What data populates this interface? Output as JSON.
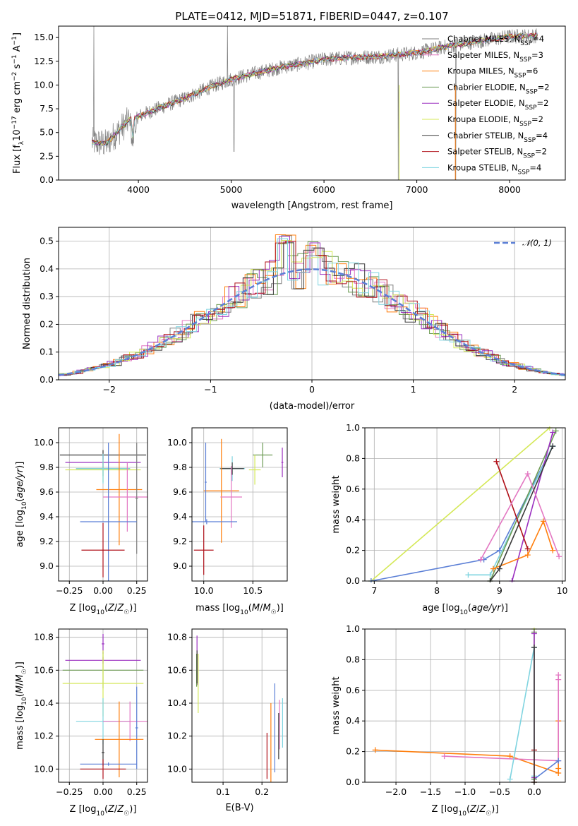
{
  "figure": {
    "title": "PLATE=0412, MJD=51871, FIBERID=0447, z=0.107"
  },
  "model_colors": [
    "#7f7f7f",
    "#e377c2",
    "#ff7f0e",
    "#6c9b53",
    "#9b30c0",
    "#d4e857",
    "#3a3a3a",
    "#b0111a",
    "#7fd4e0"
  ],
  "chart_data": [
    {
      "type": "line",
      "panel": "spectrum",
      "title": "PLATE=0412, MJD=51871, FIBERID=0447, z=0.107",
      "xlabel": "wavelength [Angstrom, rest frame]",
      "ylabel": "Flux [f_λ 10^-17 erg cm^-2 s^-1 A^-1]",
      "xlim": [
        3140,
        8600
      ],
      "ylim": [
        0,
        16.2
      ],
      "xticks": [
        4000,
        5000,
        6000,
        7000,
        8000
      ],
      "yticks": [
        0.0,
        2.5,
        5.0,
        7.5,
        10.0,
        12.5,
        15.0
      ],
      "ytick_labels": [
        "0.0",
        "2.5",
        "5.0",
        "7.5",
        "10.0",
        "12.5",
        "15.0"
      ],
      "grid": false,
      "legend_position": "top-right",
      "legend": [
        {
          "label": "Chabrier MILES, N",
          "sub": "SSP",
          "suffix": "=4",
          "color": "#7f7f7f"
        },
        {
          "label": "Salpeter MILES, N",
          "sub": "SSP",
          "suffix": "=3",
          "color": "#e377c2"
        },
        {
          "label": "Kroupa MILES, N",
          "sub": "SSP",
          "suffix": "=6",
          "color": "#ff7f0e"
        },
        {
          "label": "Chabrier ELODIE, N",
          "sub": "SSP",
          "suffix": "=2",
          "color": "#6c9b53"
        },
        {
          "label": "Salpeter ELODIE, N",
          "sub": "SSP",
          "suffix": "=2",
          "color": "#9b30c0"
        },
        {
          "label": "Kroupa ELODIE, N",
          "sub": "SSP",
          "suffix": "=2",
          "color": "#d4e857"
        },
        {
          "label": "Chabrier STELIB, N",
          "sub": "SSP",
          "suffix": "=4",
          "color": "#3a3a3a"
        },
        {
          "label": "Salpeter STELIB, N",
          "sub": "SSP",
          "suffix": "=2",
          "color": "#b0111a"
        },
        {
          "label": "Kroupa STELIB, N",
          "sub": "SSP",
          "suffix": "=4",
          "color": "#7fd4e0"
        }
      ],
      "continuum": {
        "x": [
          3500,
          3650,
          3900,
          4000,
          4200,
          4500,
          4800,
          5000,
          5200,
          5500,
          5800,
          6000,
          6300,
          6600,
          7000,
          7400,
          7800,
          8000,
          8300
        ],
        "y": [
          4.0,
          3.8,
          6.3,
          6.7,
          7.5,
          8.6,
          9.9,
          10.6,
          11.1,
          11.8,
          12.3,
          12.7,
          12.9,
          13.0,
          13.4,
          14.2,
          14.8,
          15.1,
          15.2
        ]
      }
    },
    {
      "type": "line",
      "panel": "residuals",
      "xlabel": "(data-model)/error",
      "ylabel": "Normed distribution",
      "xlim": [
        -2.5,
        2.5
      ],
      "ylim": [
        0,
        0.55
      ],
      "xticks": [
        -2,
        -1,
        0,
        1,
        2
      ],
      "xtick_labels": [
        "−2",
        "−1",
        "0",
        "1",
        "2"
      ],
      "yticks": [
        0.0,
        0.1,
        0.2,
        0.3,
        0.4,
        0.5
      ],
      "ytick_labels": [
        "0.0",
        "0.1",
        "0.2",
        "0.3",
        "0.4",
        "0.5"
      ],
      "grid": true,
      "legend": [
        {
          "label": "𝒩(0, 1)",
          "color": "#5b7fd6",
          "style": "dashed"
        }
      ],
      "reference": {
        "name": "𝒩(0, 1)",
        "mean": 0,
        "sigma": 1
      }
    },
    {
      "type": "scatter",
      "panel": "age-vs-Z",
      "xlabel": "Z [log10(Z/Z☉)]",
      "ylabel": "age [log10(age/yr)]",
      "xlim": [
        -0.33,
        0.33
      ],
      "ylim": [
        8.88,
        10.12
      ],
      "xticks": [
        -0.25,
        0.0,
        0.25
      ],
      "xtick_labels": [
        "−0.25",
        "0.00",
        "0.25"
      ],
      "yticks": [
        9.0,
        9.2,
        9.4,
        9.6,
        9.8,
        10.0
      ],
      "ytick_labels": [
        "9.0",
        "9.2",
        "9.4",
        "9.6",
        "9.8",
        "10.0"
      ],
      "grid": true,
      "points": [
        {
          "x": 0.0,
          "xerr": 0.32,
          "y": 9.9,
          "yerr": 0.04,
          "color": "#3a3a3a"
        },
        {
          "x": 0.0,
          "xerr": 0.28,
          "y": 9.84,
          "yerr": 0.05,
          "color": "#9b30c0"
        },
        {
          "x": 0.0,
          "xerr": 0.2,
          "y": 9.79,
          "yerr": 0.06,
          "color": "#6c9b53"
        },
        {
          "x": 0.0,
          "xerr": 0.28,
          "y": 9.78,
          "yerr": 0.1,
          "color": "#d4e857"
        },
        {
          "x": 0.0,
          "xerr": 0.2,
          "y": 9.79,
          "yerr": 0.12,
          "color": "#7fd4e0"
        },
        {
          "x": 0.12,
          "xerr": 0.17,
          "y": 9.62,
          "yerr": 0.45,
          "color": "#ff7f0e"
        },
        {
          "x": 0.18,
          "xerr": 0.18,
          "y": 9.56,
          "yerr": 0.28,
          "color": "#e377c2"
        },
        {
          "x": 0.25,
          "xerr": 0.01,
          "y": 9.55,
          "yerr": 0.45,
          "color": "#7f7f7f"
        },
        {
          "x": 0.04,
          "xerr": 0.21,
          "y": 9.36,
          "yerr": 0.64,
          "color": "#5b7fd6"
        },
        {
          "x": 0.0,
          "xerr": 0.16,
          "y": 9.13,
          "yerr": 0.22,
          "color": "#b0111a"
        }
      ]
    },
    {
      "type": "scatter",
      "panel": "age-vs-mass",
      "xlabel": "mass [log10(M/M☉)]",
      "xlim": [
        9.88,
        10.85
      ],
      "ylim": [
        8.88,
        10.12
      ],
      "xticks": [
        10.0,
        10.5
      ],
      "xtick_labels": [
        "10.0",
        "10.5"
      ],
      "yticks": [
        9.0,
        9.2,
        9.4,
        9.6,
        9.8,
        10.0
      ],
      "ytick_labels": [
        "9.0",
        "9.2",
        "9.4",
        "9.6",
        "9.8",
        "10.0"
      ],
      "grid": true,
      "points": [
        {
          "x": 10.8,
          "xerr": 0.01,
          "y": 9.84,
          "yerr": 0.12,
          "color": "#9b30c0"
        },
        {
          "x": 10.6,
          "xerr": 0.1,
          "y": 9.9,
          "yerr": 0.1,
          "color": "#6c9b53"
        },
        {
          "x": 10.52,
          "xerr": 0.06,
          "y": 9.78,
          "yerr": 0.12,
          "color": "#d4e857"
        },
        {
          "x": 10.29,
          "xerr": 0.13,
          "y": 9.79,
          "yerr": 0.1,
          "color": "#7fd4e0"
        },
        {
          "x": 10.29,
          "xerr": 0.12,
          "y": 9.79,
          "yerr": 0.05,
          "color": "#3a3a3a"
        },
        {
          "x": 10.18,
          "xerr": 0.18,
          "y": 9.61,
          "yerr": 0.42,
          "color": "#ff7f0e"
        },
        {
          "x": 10.28,
          "xerr": 0.11,
          "y": 9.56,
          "yerr": 0.25,
          "color": "#e377c2"
        },
        {
          "x": 10.02,
          "xerr": 0.01,
          "y": 9.68,
          "yerr": 0.32,
          "color": "#5b7fd6"
        },
        {
          "x": 10.03,
          "xerr": 0.31,
          "y": 9.36,
          "yerr": 0.02,
          "color": "#5b7fd6"
        },
        {
          "x": 10.0,
          "xerr": 0.1,
          "y": 9.13,
          "yerr": 0.2,
          "color": "#b0111a"
        }
      ]
    },
    {
      "type": "line",
      "panel": "mass-weight-vs-age",
      "xlabel": "age [log10(age/yr)]",
      "ylabel": "mass weight",
      "xlim": [
        6.85,
        10.05
      ],
      "ylim": [
        0,
        1
      ],
      "xticks": [
        7,
        8,
        9,
        10
      ],
      "yticks": [
        0.0,
        0.2,
        0.4,
        0.6,
        0.8,
        1.0
      ],
      "ytick_labels": [
        "0.0",
        "0.2",
        "0.4",
        "0.6",
        "0.8",
        "1.0"
      ],
      "grid": true,
      "series": [
        {
          "color": "#d4e857",
          "x": [
            6.95,
            9.8
          ],
          "y": [
            0.0,
            1.0
          ]
        },
        {
          "color": "#5b7fd6",
          "x": [
            6.95,
            8.75,
            9.0,
            9.85
          ],
          "y": [
            0.0,
            0.14,
            0.2,
            0.88
          ]
        },
        {
          "color": "#7fd4e0",
          "x": [
            8.5,
            8.85,
            9.85
          ],
          "y": [
            0.04,
            0.04,
            0.88
          ]
        },
        {
          "color": "#6c9b53",
          "x": [
            8.85,
            9.9
          ],
          "y": [
            0.0,
            0.98
          ]
        },
        {
          "color": "#9b30c0",
          "x": [
            9.2,
            9.85
          ],
          "y": [
            0.0,
            0.97
          ]
        },
        {
          "color": "#b0111a",
          "x": [
            8.95,
            9.45
          ],
          "y": [
            0.78,
            0.21
          ]
        },
        {
          "color": "#e377c2",
          "x": [
            8.7,
            9.45,
            9.95
          ],
          "y": [
            0.14,
            0.7,
            0.16
          ]
        },
        {
          "color": "#ff7f0e",
          "x": [
            8.9,
            9.45,
            9.7,
            9.85
          ],
          "y": [
            0.08,
            0.17,
            0.39,
            0.2
          ]
        },
        {
          "color": "#3a3a3a",
          "x": [
            8.85,
            9.0,
            9.85
          ],
          "y": [
            0.0,
            0.08,
            0.88
          ]
        }
      ]
    },
    {
      "type": "scatter",
      "panel": "mass-vs-Z",
      "xlabel": "Z [log10(Z/Z☉)]",
      "ylabel": "mass [log10(M/M☉)]",
      "xlim": [
        -0.33,
        0.33
      ],
      "ylim": [
        9.92,
        10.85
      ],
      "xticks": [
        -0.25,
        0.0,
        0.25
      ],
      "xtick_labels": [
        "−0.25",
        "0.00",
        "0.25"
      ],
      "yticks": [
        10.0,
        10.2,
        10.4,
        10.6,
        10.8
      ],
      "ytick_labels": [
        "10.0",
        "10.2",
        "10.4",
        "10.6",
        "10.8"
      ],
      "grid": true,
      "points": [
        {
          "x": 0.0,
          "xerr": 0.01,
          "y": 10.76,
          "yerr": 0.06,
          "color": "#9b30c0"
        },
        {
          "x": 0.0,
          "xerr": 0.28,
          "y": 10.66,
          "yerr": 0.02,
          "color": "#9b30c0"
        },
        {
          "x": 0.0,
          "xerr": 0.3,
          "y": 10.6,
          "yerr": 0.11,
          "color": "#6c9b53"
        },
        {
          "x": 0.0,
          "xerr": 0.3,
          "y": 10.52,
          "yerr": 0.2,
          "color": "#d4e857"
        },
        {
          "x": 0.0,
          "xerr": 0.2,
          "y": 10.29,
          "yerr": 0.14,
          "color": "#7fd4e0"
        },
        {
          "x": 0.2,
          "xerr": 0.2,
          "y": 10.29,
          "yerr": 0.12,
          "color": "#e377c2"
        },
        {
          "x": 0.25,
          "xerr": 0.01,
          "y": 10.25,
          "yerr": 0.25,
          "color": "#5b7fd6"
        },
        {
          "x": 0.12,
          "xerr": 0.18,
          "y": 10.18,
          "yerr": 0.23,
          "color": "#ff7f0e"
        },
        {
          "x": 0.0,
          "xerr": 0.01,
          "y": 10.1,
          "yerr": 0.08,
          "color": "#3a3a3a"
        },
        {
          "x": 0.04,
          "xerr": 0.21,
          "y": 10.03,
          "yerr": 0.01,
          "color": "#5b7fd6"
        },
        {
          "x": 0.0,
          "xerr": 0.17,
          "y": 10.0,
          "yerr": 0.06,
          "color": "#b0111a"
        }
      ]
    },
    {
      "type": "scatter",
      "panel": "mass-vs-EBV",
      "xlabel": "E(B-V)",
      "xlim": [
        0.02,
        0.265
      ],
      "ylim": [
        9.92,
        10.85
      ],
      "xticks": [
        0.1,
        0.2
      ],
      "xtick_labels": [
        "0.1",
        "0.2"
      ],
      "yticks": [
        10.0,
        10.2,
        10.4,
        10.6,
        10.8
      ],
      "ytick_labels": [
        "10.0",
        "10.2",
        "10.4",
        "10.6",
        "10.8"
      ],
      "grid": true,
      "points": [
        {
          "x": 0.033,
          "y": 10.66,
          "yerr": 0.15,
          "color": "#9b30c0"
        },
        {
          "x": 0.032,
          "y": 10.6,
          "yerr": 0.1,
          "color": "#6c9b53"
        },
        {
          "x": 0.036,
          "y": 10.52,
          "yerr": 0.18,
          "color": "#d4e857"
        },
        {
          "x": 0.033,
          "y": 10.62,
          "yerr": 0.1,
          "color": "#3a3a3a"
        },
        {
          "x": 0.213,
          "y": 10.08,
          "yerr": 0.14,
          "color": "#b0111a"
        },
        {
          "x": 0.223,
          "y": 10.16,
          "yerr": 0.24,
          "color": "#ff7f0e"
        },
        {
          "x": 0.233,
          "y": 10.25,
          "yerr": 0.27,
          "color": "#5b7fd6"
        },
        {
          "x": 0.245,
          "y": 10.27,
          "yerr": 0.15,
          "color": "#e377c2"
        },
        {
          "x": 0.253,
          "y": 10.28,
          "yerr": 0.15,
          "color": "#7fd4e0"
        },
        {
          "x": 0.243,
          "y": 10.2,
          "yerr": 0.14,
          "color": "#3a3a3a"
        }
      ]
    },
    {
      "type": "line",
      "panel": "mass-weight-vs-Z",
      "xlabel": "Z [log10(Z/Z☉)]",
      "ylabel": "mass weight",
      "xlim": [
        -2.45,
        0.45
      ],
      "ylim": [
        0,
        1
      ],
      "xticks": [
        -2.0,
        -1.5,
        -1.0,
        -0.5,
        0.0
      ],
      "xtick_labels": [
        "−2.0",
        "−1.5",
        "−1.0",
        "−0.5",
        "0.0"
      ],
      "yticks": [
        0.0,
        0.2,
        0.4,
        0.6,
        0.8,
        1.0
      ],
      "ytick_labels": [
        "0.0",
        "0.2",
        "0.4",
        "0.6",
        "0.8",
        "1.0"
      ],
      "grid": true,
      "series": [
        {
          "color": "#ff7f0e",
          "x": [
            -2.3,
            -0.35,
            0.35,
            0.35,
            0.35
          ],
          "y": [
            0.21,
            0.17,
            0.06,
            0.09,
            0.4
          ]
        },
        {
          "color": "#e377c2",
          "x": [
            -1.3,
            0.35,
            0.35,
            0.35
          ],
          "y": [
            0.17,
            0.14,
            0.67,
            0.7
          ]
        },
        {
          "color": "#5b7fd6",
          "x": [
            0.0,
            0.0,
            0.35
          ],
          "y": [
            0.0,
            0.02,
            0.14
          ]
        },
        {
          "color": "#7fd4e0",
          "x": [
            -0.35,
            0.0,
            0.0
          ],
          "y": [
            0.02,
            0.88,
            0.04
          ]
        },
        {
          "color": "#d4e857",
          "x": [
            0.0,
            0.0
          ],
          "y": [
            0.0,
            1.0
          ]
        },
        {
          "color": "#6c9b53",
          "x": [
            0.0,
            0.0
          ],
          "y": [
            0.02,
            0.98
          ]
        },
        {
          "color": "#9b30c0",
          "x": [
            0.0,
            0.0
          ],
          "y": [
            0.03,
            0.97
          ]
        },
        {
          "color": "#b0111a",
          "x": [
            0.0,
            0.0
          ],
          "y": [
            0.0,
            0.21
          ]
        },
        {
          "color": "#3a3a3a",
          "x": [
            0.0,
            0.0
          ],
          "y": [
            0.0,
            0.88
          ]
        }
      ]
    }
  ]
}
